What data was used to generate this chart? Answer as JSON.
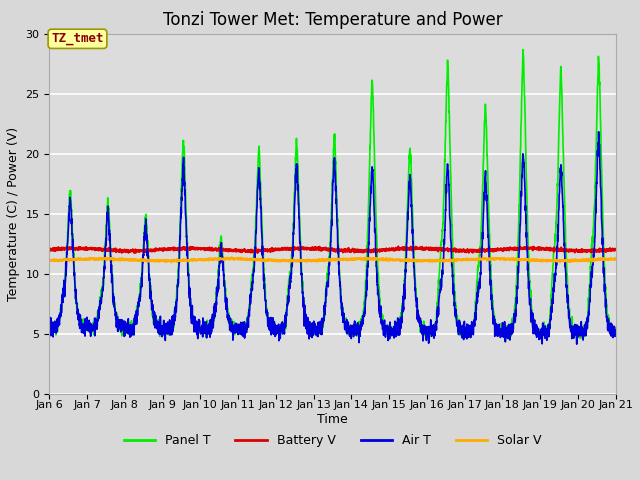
{
  "title": "Tonzi Tower Met: Temperature and Power",
  "xlabel": "Time",
  "ylabel": "Temperature (C) / Power (V)",
  "xlim_days": [
    6,
    21
  ],
  "ylim": [
    0,
    30
  ],
  "yticks": [
    0,
    5,
    10,
    15,
    20,
    25,
    30
  ],
  "xtick_labels": [
    "Jan 6",
    "Jan 7",
    "Jan 8",
    "Jan 9",
    "Jan 10",
    "Jan 11",
    "Jan 12",
    "Jan 13",
    "Jan 14",
    "Jan 15",
    "Jan 16",
    "Jan 17",
    "Jan 18",
    "Jan 19",
    "Jan 20",
    "Jan 21"
  ],
  "bg_color": "#e8e8e8",
  "plot_bg_color": "#dcdcdc",
  "annotation_text": "TZ_tmet",
  "annotation_color": "#8b0000",
  "annotation_bg": "#ffffa0",
  "panel_T_color": "#00ee00",
  "battery_V_color": "#dd0000",
  "air_T_color": "#0000dd",
  "solar_V_color": "#ffaa00",
  "line_width": 1.2,
  "title_fontsize": 12,
  "label_fontsize": 9,
  "tick_fontsize": 8,
  "legend_fontsize": 9
}
